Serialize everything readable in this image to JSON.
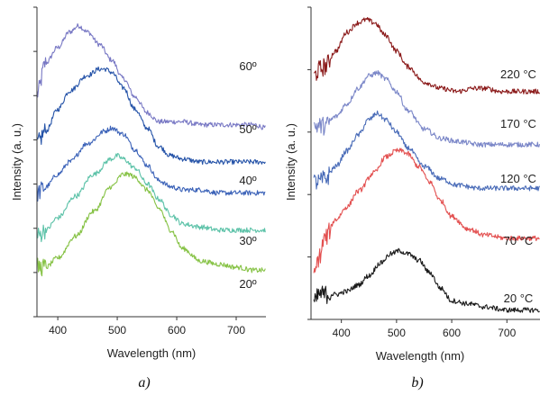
{
  "chart_data": [
    {
      "type": "line",
      "panel_label": "a)",
      "xlabel": "Wavelength (nm)",
      "ylabel": "Intensity (a. u.)",
      "xlim": [
        365,
        750
      ],
      "ylim": [
        0,
        1
      ],
      "x_ticks": [
        400,
        500,
        600,
        700
      ],
      "y_tick_count": 7,
      "grid": false,
      "series": [
        {
          "name": "60º",
          "color": "#7878c4",
          "x": [
            365,
            380,
            400,
            420,
            435,
            450,
            470,
            490,
            510,
            530,
            550,
            570,
            590,
            610,
            640,
            670,
            700,
            730,
            750
          ],
          "y": [
            0.72,
            0.82,
            0.87,
            0.92,
            0.94,
            0.92,
            0.88,
            0.83,
            0.77,
            0.71,
            0.66,
            0.63,
            0.63,
            0.63,
            0.62,
            0.62,
            0.62,
            0.62,
            0.61
          ]
        },
        {
          "name": "50º",
          "color": "#2553a8",
          "x": [
            365,
            380,
            400,
            420,
            450,
            470,
            480,
            490,
            510,
            530,
            550,
            570,
            590,
            610,
            640,
            670,
            700,
            730,
            750
          ],
          "y": [
            0.56,
            0.6,
            0.67,
            0.73,
            0.78,
            0.8,
            0.8,
            0.79,
            0.74,
            0.67,
            0.61,
            0.55,
            0.52,
            0.51,
            0.5,
            0.5,
            0.5,
            0.5,
            0.5
          ]
        },
        {
          "name": "40º",
          "color": "#3b62b8",
          "x": [
            365,
            380,
            400,
            420,
            450,
            480,
            490,
            510,
            530,
            550,
            570,
            590,
            610,
            640,
            670,
            700,
            730,
            750
          ],
          "y": [
            0.4,
            0.42,
            0.46,
            0.5,
            0.56,
            0.6,
            0.61,
            0.59,
            0.54,
            0.49,
            0.44,
            0.42,
            0.41,
            0.41,
            0.4,
            0.4,
            0.4,
            0.4
          ]
        },
        {
          "name": "30º",
          "color": "#5cc2a8",
          "x": [
            365,
            380,
            400,
            430,
            460,
            490,
            500,
            510,
            530,
            550,
            570,
            590,
            610,
            640,
            670,
            700,
            730,
            750
          ],
          "y": [
            0.26,
            0.28,
            0.32,
            0.39,
            0.46,
            0.51,
            0.52,
            0.51,
            0.48,
            0.43,
            0.38,
            0.33,
            0.3,
            0.29,
            0.28,
            0.28,
            0.28,
            0.28
          ]
        },
        {
          "name": "20º",
          "color": "#86c245",
          "x": [
            365,
            380,
            400,
            430,
            460,
            490,
            510,
            520,
            530,
            550,
            570,
            590,
            610,
            640,
            670,
            700,
            730,
            750
          ],
          "y": [
            0.16,
            0.16,
            0.19,
            0.26,
            0.34,
            0.42,
            0.46,
            0.46,
            0.45,
            0.41,
            0.35,
            0.28,
            0.22,
            0.18,
            0.17,
            0.16,
            0.15,
            0.15
          ]
        }
      ]
    },
    {
      "type": "line",
      "panel_label": "b)",
      "xlabel": "Wavelength (nm)",
      "ylabel": "Intensity (a. u.)",
      "xlim": [
        345,
        760
      ],
      "ylim": [
        0,
        1
      ],
      "x_ticks": [
        400,
        500,
        600,
        700
      ],
      "y_tick_count": 5,
      "grid": false,
      "series": [
        {
          "name": "220 °C",
          "color": "#8b1a1a",
          "x": [
            350,
            360,
            370,
            390,
            410,
            430,
            445,
            460,
            480,
            500,
            520,
            550,
            580,
            610,
            640,
            660,
            690,
            720,
            760
          ],
          "y": [
            0.78,
            0.8,
            0.81,
            0.86,
            0.92,
            0.95,
            0.96,
            0.95,
            0.91,
            0.86,
            0.81,
            0.76,
            0.74,
            0.73,
            0.74,
            0.74,
            0.73,
            0.73,
            0.73
          ]
        },
        {
          "name": "170 °C",
          "color": "#7b87c8",
          "x": [
            350,
            360,
            370,
            390,
            410,
            430,
            450,
            465,
            480,
            500,
            520,
            550,
            580,
            610,
            650,
            690,
            720,
            760
          ],
          "y": [
            0.62,
            0.62,
            0.62,
            0.65,
            0.69,
            0.74,
            0.78,
            0.79,
            0.77,
            0.73,
            0.67,
            0.61,
            0.58,
            0.57,
            0.56,
            0.56,
            0.56,
            0.56
          ]
        },
        {
          "name": "120 °C",
          "color": "#4a6cb8",
          "x": [
            350,
            360,
            370,
            390,
            410,
            430,
            450,
            465,
            480,
            500,
            520,
            550,
            580,
            610,
            650,
            690,
            720,
            760
          ],
          "y": [
            0.44,
            0.44,
            0.45,
            0.49,
            0.54,
            0.59,
            0.64,
            0.66,
            0.64,
            0.6,
            0.55,
            0.49,
            0.45,
            0.43,
            0.42,
            0.42,
            0.42,
            0.42
          ]
        },
        {
          "name": "70 °C",
          "color": "#e35050",
          "x": [
            350,
            360,
            370,
            390,
            410,
            430,
            460,
            480,
            500,
            510,
            520,
            540,
            560,
            580,
            600,
            630,
            660,
            700,
            760
          ],
          "y": [
            0.14,
            0.2,
            0.26,
            0.32,
            0.36,
            0.41,
            0.47,
            0.52,
            0.54,
            0.54,
            0.53,
            0.49,
            0.44,
            0.38,
            0.33,
            0.29,
            0.27,
            0.26,
            0.26
          ]
        },
        {
          "name": "20 °C",
          "color": "#1a1a1a",
          "x": [
            350,
            360,
            370,
            390,
            410,
            430,
            450,
            470,
            490,
            505,
            520,
            540,
            560,
            580,
            600,
            630,
            660,
            700,
            760
          ],
          "y": [
            0.05,
            0.08,
            0.08,
            0.08,
            0.09,
            0.11,
            0.14,
            0.18,
            0.21,
            0.22,
            0.21,
            0.19,
            0.15,
            0.1,
            0.06,
            0.05,
            0.04,
            0.03,
            0.03
          ]
        }
      ]
    }
  ]
}
